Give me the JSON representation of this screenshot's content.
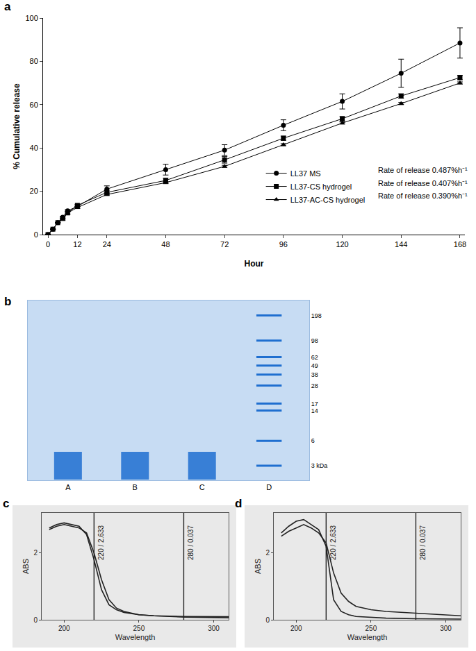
{
  "chart_data": [
    {
      "title": "a",
      "type": "line",
      "x": [
        0,
        2,
        4,
        6,
        8,
        12,
        24,
        48,
        72,
        96,
        120,
        144,
        168
      ],
      "xlim": [
        -2,
        170
      ],
      "xticks": [
        0,
        12,
        24,
        48,
        72,
        96,
        120,
        144,
        168
      ],
      "ylim": [
        0,
        100
      ],
      "yticks": [
        0,
        20,
        40,
        60,
        80,
        100
      ],
      "xlabel": "Hour",
      "ylabel": "% Cumulative release",
      "legend": "lower right",
      "series": [
        {
          "name": "LL37 MS",
          "marker": "circle",
          "color": "#000000",
          "values": [
            0,
            2.5,
            5.5,
            8,
            11,
            13,
            21,
            30,
            39,
            50.5,
            61.5,
            74.5,
            88.5
          ],
          "errors": [
            0,
            0,
            0,
            0.5,
            0.5,
            0.5,
            1.5,
            2.5,
            2.5,
            2.5,
            3.5,
            6.5,
            7
          ],
          "annotation": "Rate of release 0.487%h⁻¹"
        },
        {
          "name": "LL37-CS hydrogel",
          "marker": "square",
          "color": "#000000",
          "values": [
            0,
            2.5,
            5.5,
            7.5,
            10,
            13.5,
            19.5,
            25,
            34.5,
            44.5,
            53.5,
            64,
            72.5
          ],
          "errors": [
            0,
            0,
            0,
            0.5,
            0.5,
            0.5,
            1,
            1,
            1.5,
            1,
            1,
            1,
            1
          ],
          "annotation": "Rate of release 0.407%h⁻¹"
        },
        {
          "name": "LL37-AC-CS hydrogel",
          "marker": "triangle-up",
          "color": "#000000",
          "values": [
            0,
            2.5,
            5.5,
            7,
            10,
            12.5,
            18.5,
            24,
            31.5,
            41.5,
            51.5,
            60.5,
            70
          ],
          "errors": [
            0,
            0,
            0,
            0.5,
            0.5,
            0.5,
            0.5,
            0.5,
            0.5,
            0.5,
            0.5,
            0.5,
            0.5
          ],
          "annotation": "Rate of release 0.390%h⁻¹"
        }
      ]
    },
    {
      "title": "b",
      "type": "gel",
      "categories": [
        "A",
        "B",
        "C",
        "D"
      ],
      "values": [
        3,
        3,
        3,
        null
      ],
      "ladder": [
        198,
        98,
        62,
        49,
        38,
        28,
        17,
        14,
        6,
        3
      ],
      "ylim": [
        2,
        300
      ],
      "log": "y",
      "yticks": [
        198,
        98,
        62,
        49,
        38,
        28,
        17,
        14,
        6,
        {
          "value": 3,
          "label": "3 kDa"
        }
      ],
      "color": "#1f6fd0"
    },
    {
      "title": "c",
      "type": "line",
      "x": [
        190,
        195,
        200,
        205,
        210,
        215,
        220,
        225,
        230,
        235,
        240,
        250,
        260,
        280,
        300,
        310
      ],
      "xlim": [
        185,
        310
      ],
      "xticks": [
        200,
        250,
        300
      ],
      "ylim": [
        0,
        3.2
      ],
      "yticks": [
        0,
        2
      ],
      "xlabel": "Wavelength",
      "ylabel": "ABS",
      "series": [
        {
          "color": "#222222",
          "values": [
            2.7,
            2.8,
            2.85,
            2.8,
            2.75,
            2.6,
            2.0,
            1.2,
            0.6,
            0.35,
            0.25,
            0.15,
            0.12,
            0.08,
            0.07,
            0.06
          ]
        },
        {
          "color": "#222222",
          "values": [
            2.75,
            2.85,
            2.9,
            2.85,
            2.8,
            2.55,
            1.8,
            0.9,
            0.45,
            0.3,
            0.22,
            0.15,
            0.12,
            0.1,
            0.1,
            0.09
          ]
        }
      ],
      "annotations": [
        {
          "x": 220,
          "text": "220 / 2.633"
        },
        {
          "x": 280,
          "text": "280 / 0.037"
        }
      ]
    },
    {
      "title": "d",
      "type": "line",
      "x": [
        190,
        195,
        200,
        205,
        210,
        215,
        220,
        225,
        230,
        235,
        240,
        250,
        260,
        280,
        300,
        310
      ],
      "xlim": [
        185,
        310
      ],
      "xticks": [
        200,
        250,
        300
      ],
      "ylim": [
        0,
        3.2
      ],
      "yticks": [
        0,
        2
      ],
      "xlabel": "Wavelength",
      "ylabel": "ABS",
      "series": [
        {
          "color": "#222222",
          "values": [
            2.6,
            2.8,
            2.95,
            3.0,
            2.85,
            2.7,
            2.2,
            0.6,
            0.25,
            0.15,
            0.1,
            0.07,
            0.05,
            0.03,
            0.02,
            0.02
          ]
        },
        {
          "color": "#222222",
          "values": [
            2.5,
            2.65,
            2.75,
            2.85,
            2.75,
            2.6,
            2.3,
            1.4,
            0.8,
            0.55,
            0.4,
            0.3,
            0.25,
            0.2,
            0.15,
            0.12
          ]
        }
      ],
      "annotations": [
        {
          "x": 220,
          "text": "220 / 2.633"
        },
        {
          "x": 280,
          "text": "280 / 0.037"
        }
      ]
    }
  ]
}
